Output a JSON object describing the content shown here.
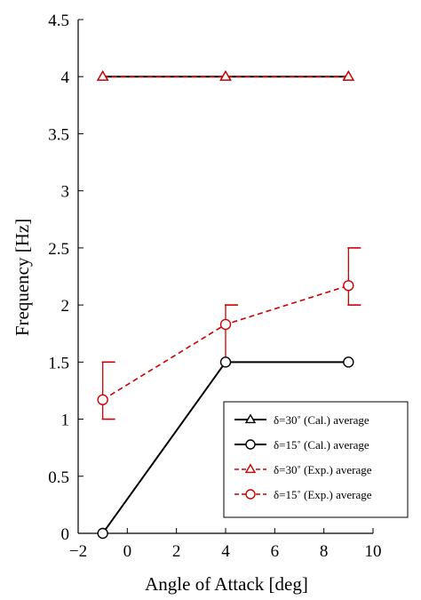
{
  "chart_data": {
    "type": "line",
    "title": "",
    "xlabel": "Angle of Attack [deg]",
    "ylabel": "Frequency [Hz]",
    "xlim": [
      -2,
      10
    ],
    "ylim": [
      0,
      4.5
    ],
    "xticks": [
      -2,
      0,
      2,
      4,
      6,
      8,
      10
    ],
    "yticks": [
      0,
      0.5,
      1,
      1.5,
      2,
      2.5,
      3,
      3.5,
      4,
      4.5
    ],
    "xtick_labels": [
      "−2",
      "0",
      "2",
      "4",
      "6",
      "8",
      "10"
    ],
    "ytick_labels": [
      "0",
      "0.5",
      "1",
      "1.5",
      "2",
      "2.5",
      "3",
      "3.5",
      "4",
      "4.5"
    ],
    "grid": false,
    "legend_position": "bottom-right",
    "series": [
      {
        "name": "δ=30˚ (Cal.) average",
        "x": [
          -1,
          4,
          9
        ],
        "y": [
          4,
          4,
          4
        ],
        "color": "#000000",
        "line_style": "solid",
        "marker": "triangle"
      },
      {
        "name": "δ=15˚ (Cal.) average",
        "x": [
          -1,
          4,
          9
        ],
        "y": [
          0,
          1.5,
          1.5
        ],
        "color": "#000000",
        "line_style": "solid",
        "marker": "circle"
      },
      {
        "name": "δ=30˚ (Exp.) average",
        "x": [
          -1,
          4,
          9
        ],
        "y": [
          4,
          4,
          4
        ],
        "color": "#cc0000",
        "line_style": "dashed",
        "marker": "triangle"
      },
      {
        "name": "δ=15˚ (Exp.) average",
        "x": [
          -1,
          4,
          9
        ],
        "y": [
          1.17,
          1.83,
          2.17
        ],
        "y_low": [
          1.0,
          1.5,
          2.0
        ],
        "y_high": [
          1.5,
          2.0,
          2.5
        ],
        "color": "#cc0000",
        "line_style": "dashed",
        "marker": "circle"
      }
    ]
  }
}
